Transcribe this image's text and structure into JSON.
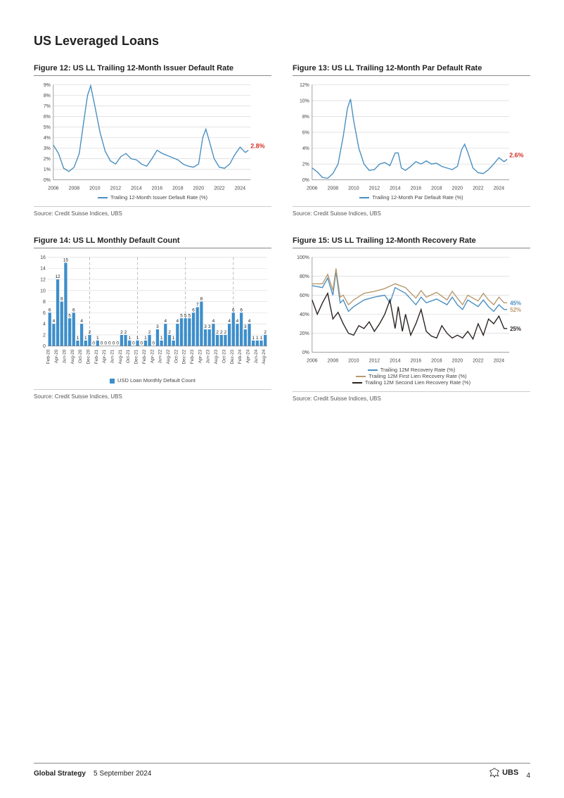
{
  "page_title": "US Leveraged Loans",
  "footer": {
    "section": "Global Strategy",
    "date": "5 September 2024",
    "brand": "UBS",
    "page_number": "4"
  },
  "source_text": "Source: Credit Suisse Indices, UBS",
  "colors": {
    "line_blue": "#4a8fc1",
    "line_tan": "#b89a6f",
    "line_dark": "#2a2320",
    "bar_blue": "#3d8ecb",
    "callout_red": "#d63329",
    "grid": "#d9d9d9",
    "axis": "#888888",
    "divider_dash": "#bbbbbb"
  },
  "fig12": {
    "title": "Figure 12: US LL Trailing 12-Month Issuer Default Rate",
    "legend": "Trailing 12-Month Issuer Default Rate (%)",
    "callout": "2.8%",
    "y_ticks": [
      0,
      1,
      2,
      3,
      4,
      5,
      6,
      7,
      8,
      9
    ],
    "y_suffix": "%",
    "y_max": 9,
    "x_labels": [
      2006,
      2008,
      2010,
      2012,
      2014,
      2016,
      2018,
      2020,
      2022,
      2024
    ],
    "x_start": 2006,
    "x_end": 2025,
    "data": [
      [
        2006.0,
        3.3
      ],
      [
        2006.5,
        2.5
      ],
      [
        2007.0,
        1.1
      ],
      [
        2007.5,
        0.8
      ],
      [
        2008.0,
        1.2
      ],
      [
        2008.5,
        2.5
      ],
      [
        2009.0,
        6.0
      ],
      [
        2009.3,
        8.0
      ],
      [
        2009.6,
        8.9
      ],
      [
        2010.0,
        7.0
      ],
      [
        2010.5,
        4.5
      ],
      [
        2011.0,
        2.7
      ],
      [
        2011.5,
        1.8
      ],
      [
        2012.0,
        1.5
      ],
      [
        2012.5,
        2.2
      ],
      [
        2013.0,
        2.5
      ],
      [
        2013.5,
        2.0
      ],
      [
        2014.0,
        1.9
      ],
      [
        2014.5,
        1.5
      ],
      [
        2015.0,
        1.3
      ],
      [
        2015.5,
        2.0
      ],
      [
        2016.0,
        2.8
      ],
      [
        2016.5,
        2.5
      ],
      [
        2017.0,
        2.3
      ],
      [
        2017.5,
        2.1
      ],
      [
        2018.0,
        1.9
      ],
      [
        2018.5,
        1.5
      ],
      [
        2019.0,
        1.3
      ],
      [
        2019.5,
        1.2
      ],
      [
        2020.0,
        1.5
      ],
      [
        2020.4,
        4.0
      ],
      [
        2020.7,
        4.8
      ],
      [
        2021.0,
        3.8
      ],
      [
        2021.5,
        2.0
      ],
      [
        2022.0,
        1.2
      ],
      [
        2022.5,
        1.1
      ],
      [
        2023.0,
        1.5
      ],
      [
        2023.5,
        2.4
      ],
      [
        2024.0,
        3.1
      ],
      [
        2024.5,
        2.6
      ],
      [
        2024.8,
        2.8
      ]
    ]
  },
  "fig13": {
    "title": "Figure 13: US LL Trailing 12-Month Par Default Rate",
    "legend": "Trailing 12-Month Par Default Rate (%)",
    "callout": "2.6%",
    "y_ticks": [
      0,
      2,
      4,
      6,
      8,
      10,
      12
    ],
    "y_suffix": "%",
    "y_max": 12,
    "x_labels": [
      2006,
      2008,
      2010,
      2012,
      2014,
      2016,
      2018,
      2020,
      2022,
      2024
    ],
    "x_start": 2006,
    "x_end": 2025,
    "data": [
      [
        2006.0,
        1.5
      ],
      [
        2006.5,
        1.0
      ],
      [
        2007.0,
        0.3
      ],
      [
        2007.5,
        0.2
      ],
      [
        2008.0,
        0.8
      ],
      [
        2008.5,
        2.0
      ],
      [
        2009.0,
        5.5
      ],
      [
        2009.4,
        9.0
      ],
      [
        2009.7,
        10.2
      ],
      [
        2010.0,
        7.5
      ],
      [
        2010.5,
        4.0
      ],
      [
        2011.0,
        2.0
      ],
      [
        2011.5,
        1.2
      ],
      [
        2012.0,
        1.3
      ],
      [
        2012.5,
        2.0
      ],
      [
        2013.0,
        2.2
      ],
      [
        2013.5,
        1.8
      ],
      [
        2014.0,
        3.4
      ],
      [
        2014.3,
        3.4
      ],
      [
        2014.6,
        1.5
      ],
      [
        2015.0,
        1.2
      ],
      [
        2015.5,
        1.7
      ],
      [
        2016.0,
        2.3
      ],
      [
        2016.5,
        2.0
      ],
      [
        2017.0,
        2.4
      ],
      [
        2017.5,
        2.0
      ],
      [
        2018.0,
        2.1
      ],
      [
        2018.5,
        1.7
      ],
      [
        2019.0,
        1.5
      ],
      [
        2019.5,
        1.3
      ],
      [
        2020.0,
        1.7
      ],
      [
        2020.4,
        3.8
      ],
      [
        2020.7,
        4.5
      ],
      [
        2021.0,
        3.5
      ],
      [
        2021.5,
        1.5
      ],
      [
        2022.0,
        0.9
      ],
      [
        2022.5,
        0.8
      ],
      [
        2023.0,
        1.3
      ],
      [
        2023.5,
        2.0
      ],
      [
        2024.0,
        2.8
      ],
      [
        2024.5,
        2.3
      ],
      [
        2024.8,
        2.6
      ]
    ]
  },
  "fig14": {
    "title": "Figure 14: US LL Monthly Default Count",
    "legend": "USD Loan Monthly Default Count",
    "y_ticks": [
      0,
      2,
      4,
      6,
      8,
      10,
      12,
      14,
      16
    ],
    "y_max": 16,
    "dividers_after": [
      10,
      22,
      34,
      46
    ],
    "bars": [
      {
        "label": "Feb-20",
        "v": 6
      },
      {
        "label": "",
        "v": 4
      },
      {
        "label": "Apr-20",
        "v": 12
      },
      {
        "label": "",
        "v": 8
      },
      {
        "label": "Jun-20",
        "v": 15
      },
      {
        "label": "",
        "v": 5
      },
      {
        "label": "Aug-20",
        "v": 6
      },
      {
        "label": "",
        "v": 1
      },
      {
        "label": "Oct-20",
        "v": 4
      },
      {
        "label": "",
        "v": 1
      },
      {
        "label": "Dec-20",
        "v": 2
      },
      {
        "label": "",
        "v": 0
      },
      {
        "label": "Feb-21",
        "v": 1
      },
      {
        "label": "",
        "v": 0
      },
      {
        "label": "Apr-21",
        "v": 0
      },
      {
        "label": "",
        "v": 0
      },
      {
        "label": "Jun-21",
        "v": 0
      },
      {
        "label": "",
        "v": 0
      },
      {
        "label": "Aug-21",
        "v": 2
      },
      {
        "label": "",
        "v": 2
      },
      {
        "label": "Oct-21",
        "v": 1
      },
      {
        "label": "",
        "v": 0
      },
      {
        "label": "Dec-21",
        "v": 1
      },
      {
        "label": "",
        "v": 0
      },
      {
        "label": "Feb-22",
        "v": 1
      },
      {
        "label": "",
        "v": 2
      },
      {
        "label": "Apr-22",
        "v": 0
      },
      {
        "label": "",
        "v": 3
      },
      {
        "label": "Jun-22",
        "v": 1
      },
      {
        "label": "",
        "v": 4
      },
      {
        "label": "Aug-22",
        "v": 2
      },
      {
        "label": "",
        "v": 1
      },
      {
        "label": "Oct-22",
        "v": 4
      },
      {
        "label": "",
        "v": 5
      },
      {
        "label": "Dec-22",
        "v": 5
      },
      {
        "label": "",
        "v": 5
      },
      {
        "label": "Feb-23",
        "v": 6
      },
      {
        "label": "",
        "v": 7
      },
      {
        "label": "Apr-23",
        "v": 8
      },
      {
        "label": "",
        "v": 3
      },
      {
        "label": "Jun-23",
        "v": 3
      },
      {
        "label": "",
        "v": 4
      },
      {
        "label": "Aug-23",
        "v": 2
      },
      {
        "label": "",
        "v": 2
      },
      {
        "label": "Oct-23",
        "v": 2
      },
      {
        "label": "",
        "v": 4
      },
      {
        "label": "Dec-23",
        "v": 6
      },
      {
        "label": "",
        "v": 4
      },
      {
        "label": "Feb-24",
        "v": 6
      },
      {
        "label": "",
        "v": 3
      },
      {
        "label": "Apr-24",
        "v": 4
      },
      {
        "label": "",
        "v": 1
      },
      {
        "label": "Jun-24",
        "v": 1
      },
      {
        "label": "",
        "v": 1
      },
      {
        "label": "Aug-24",
        "v": 2
      }
    ]
  },
  "fig15": {
    "title": "Figure 15: US LL Trailing 12-Month Recovery Rate",
    "legends": [
      "Trailing 12M Recovery Rate (%)",
      "Trailing 12M First Lien Recovery Rate (%)",
      "Trailing 12M Second Lien Recovery Rate (%)"
    ],
    "callouts": [
      {
        "text": "52%",
        "color": "#b89a6f"
      },
      {
        "text": "45%",
        "color": "#4a8fc1"
      },
      {
        "text": "25%",
        "color": "#2a2320"
      }
    ],
    "y_ticks": [
      0,
      20,
      40,
      60,
      80,
      100
    ],
    "y_suffix": "%",
    "y_max": 100,
    "x_labels": [
      2006,
      2008,
      2010,
      2012,
      2014,
      2016,
      2018,
      2020,
      2022,
      2024
    ],
    "x_start": 2006,
    "x_end": 2025,
    "series": [
      {
        "color": "#4a8fc1",
        "data": [
          [
            2006,
            70
          ],
          [
            2007,
            68
          ],
          [
            2007.5,
            78
          ],
          [
            2008,
            60
          ],
          [
            2008.3,
            85
          ],
          [
            2008.7,
            52
          ],
          [
            2009,
            55
          ],
          [
            2009.5,
            43
          ],
          [
            2010,
            48
          ],
          [
            2011,
            55
          ],
          [
            2012,
            58
          ],
          [
            2013,
            60
          ],
          [
            2013.5,
            52
          ],
          [
            2014,
            68
          ],
          [
            2015,
            62
          ],
          [
            2016,
            50
          ],
          [
            2016.5,
            58
          ],
          [
            2017,
            52
          ],
          [
            2018,
            56
          ],
          [
            2019,
            50
          ],
          [
            2019.5,
            58
          ],
          [
            2020,
            50
          ],
          [
            2020.5,
            45
          ],
          [
            2021,
            55
          ],
          [
            2022,
            48
          ],
          [
            2022.5,
            55
          ],
          [
            2023,
            48
          ],
          [
            2023.5,
            43
          ],
          [
            2024,
            50
          ],
          [
            2024.5,
            45
          ],
          [
            2024.8,
            45
          ]
        ]
      },
      {
        "color": "#b89a6f",
        "data": [
          [
            2006,
            72
          ],
          [
            2007,
            72
          ],
          [
            2007.5,
            82
          ],
          [
            2008,
            65
          ],
          [
            2008.3,
            88
          ],
          [
            2008.7,
            58
          ],
          [
            2009,
            60
          ],
          [
            2009.5,
            50
          ],
          [
            2010,
            55
          ],
          [
            2011,
            62
          ],
          [
            2012,
            64
          ],
          [
            2013,
            67
          ],
          [
            2014,
            72
          ],
          [
            2015,
            68
          ],
          [
            2016,
            57
          ],
          [
            2016.5,
            65
          ],
          [
            2017,
            58
          ],
          [
            2018,
            63
          ],
          [
            2019,
            55
          ],
          [
            2019.5,
            64
          ],
          [
            2020,
            57
          ],
          [
            2020.5,
            50
          ],
          [
            2021,
            60
          ],
          [
            2022,
            54
          ],
          [
            2022.5,
            62
          ],
          [
            2023,
            55
          ],
          [
            2023.5,
            50
          ],
          [
            2024,
            58
          ],
          [
            2024.5,
            52
          ],
          [
            2024.8,
            52
          ]
        ]
      },
      {
        "color": "#2a2320",
        "data": [
          [
            2006,
            55
          ],
          [
            2006.5,
            40
          ],
          [
            2007,
            52
          ],
          [
            2007.5,
            62
          ],
          [
            2008,
            35
          ],
          [
            2008.5,
            42
          ],
          [
            2009,
            30
          ],
          [
            2009.5,
            20
          ],
          [
            2010,
            18
          ],
          [
            2010.5,
            28
          ],
          [
            2011,
            25
          ],
          [
            2011.5,
            32
          ],
          [
            2012,
            22
          ],
          [
            2012.5,
            30
          ],
          [
            2013,
            40
          ],
          [
            2013.5,
            55
          ],
          [
            2014,
            25
          ],
          [
            2014.3,
            48
          ],
          [
            2014.7,
            22
          ],
          [
            2015,
            40
          ],
          [
            2015.5,
            18
          ],
          [
            2016,
            30
          ],
          [
            2016.5,
            45
          ],
          [
            2017,
            22
          ],
          [
            2017.5,
            17
          ],
          [
            2018,
            15
          ],
          [
            2018.5,
            28
          ],
          [
            2019,
            20
          ],
          [
            2019.5,
            15
          ],
          [
            2020,
            18
          ],
          [
            2020.5,
            15
          ],
          [
            2021,
            22
          ],
          [
            2021.5,
            14
          ],
          [
            2022,
            30
          ],
          [
            2022.5,
            18
          ],
          [
            2023,
            35
          ],
          [
            2023.5,
            30
          ],
          [
            2024,
            38
          ],
          [
            2024.5,
            25
          ],
          [
            2024.8,
            25
          ]
        ]
      }
    ]
  }
}
